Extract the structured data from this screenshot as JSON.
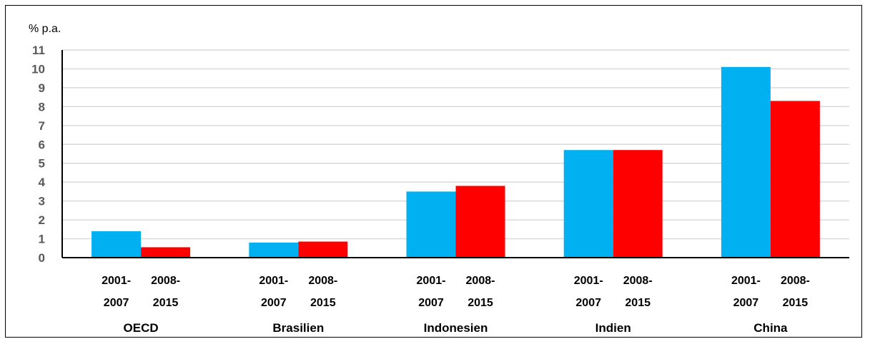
{
  "chart_data": {
    "type": "bar",
    "unit_label": "% p.a.",
    "ylim": [
      0,
      11
    ],
    "yticks": [
      "0",
      "1",
      "2",
      "3",
      "4",
      "5",
      "6",
      "7",
      "8",
      "9",
      "10",
      "11"
    ],
    "grid": true,
    "categories": [
      "OECD",
      "Brasilien",
      "Indonesien",
      "Indien",
      "China"
    ],
    "period_labels": [
      {
        "line1": "2001-",
        "line2": "2007"
      },
      {
        "line1": "2008-",
        "line2": "2015"
      }
    ],
    "series": [
      {
        "values": [
          1.4,
          0.8,
          3.5,
          5.7,
          10.1
        ],
        "color": "#00b0f0"
      },
      {
        "values": [
          0.55,
          0.85,
          3.8,
          5.7,
          8.3
        ],
        "color": "#ff0000"
      }
    ]
  }
}
